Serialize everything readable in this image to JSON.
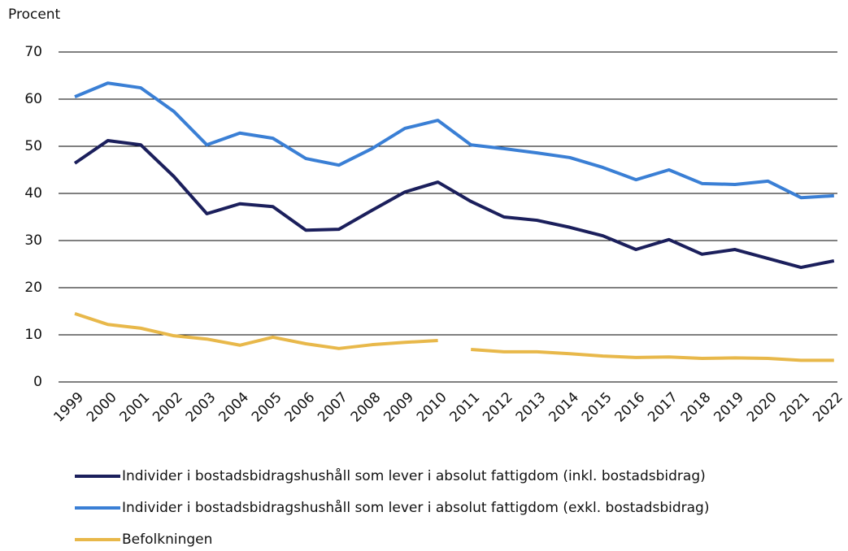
{
  "chart_data": {
    "type": "line",
    "y_label": "Procent",
    "categories": [
      "1999",
      "2000",
      "2001",
      "2002",
      "2003",
      "2004",
      "2005",
      "2006",
      "2007",
      "2008",
      "2009",
      "2010",
      "2011",
      "2012",
      "2013",
      "2014",
      "2015",
      "2016",
      "2017",
      "2018",
      "2019",
      "2020",
      "2021",
      "2022"
    ],
    "ylim": [
      0,
      70
    ],
    "yticks": [
      0,
      10,
      20,
      30,
      40,
      50,
      60,
      70
    ],
    "grid": true,
    "series": [
      {
        "name": "Individer i bostadsbidragshushåll som lever i absolut fattigdom (inkl. bostadsbidrag)",
        "color": "#1b1f5c",
        "values": [
          46.4,
          51.2,
          50.3,
          43.6,
          35.7,
          37.8,
          37.2,
          32.2,
          32.4,
          36.4,
          40.3,
          42.4,
          38.3,
          35.0,
          34.3,
          32.8,
          31.0,
          28.1,
          30.2,
          27.1,
          28.1,
          26.2,
          24.3,
          25.7
        ]
      },
      {
        "name": "Individer i bostadsbidragshushåll som lever i absolut fattigdom (exkl. bostadsbidrag)",
        "color": "#3a7fd5",
        "values": [
          60.5,
          63.4,
          62.4,
          57.4,
          50.3,
          52.8,
          51.7,
          47.4,
          46.0,
          49.5,
          53.8,
          55.5,
          50.3,
          49.5,
          48.6,
          47.6,
          45.5,
          42.9,
          45.0,
          42.1,
          41.9,
          42.6,
          39.1,
          39.5
        ]
      },
      {
        "name": "Befolkningen",
        "color": "#e8b84a",
        "break_after": [
          11
        ],
        "values": [
          14.5,
          12.2,
          11.4,
          9.8,
          9.1,
          7.8,
          9.5,
          8.1,
          7.1,
          7.9,
          8.4,
          8.8,
          6.9,
          6.4,
          6.4,
          6.0,
          5.5,
          5.2,
          5.3,
          5.0,
          5.1,
          5.0,
          4.6,
          4.6
        ]
      }
    ]
  }
}
